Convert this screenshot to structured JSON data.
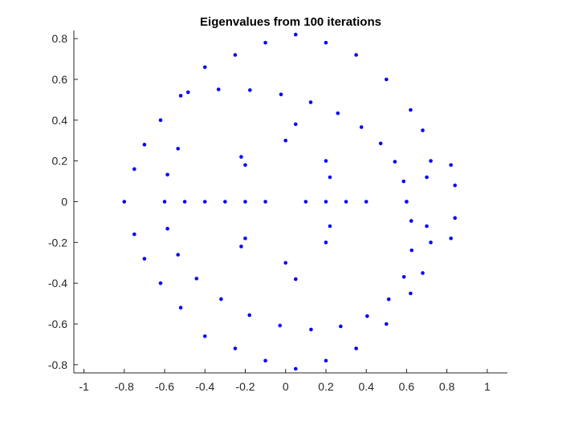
{
  "chart_data": {
    "type": "scatter",
    "title": "Eigenvalues from 100 iterations",
    "xlabel": "",
    "ylabel": "",
    "xlim": [
      -1.05,
      1.1
    ],
    "ylim": [
      -0.84,
      0.84
    ],
    "xticks": [
      -1,
      -0.8,
      -0.6,
      -0.4,
      -0.2,
      0,
      0.2,
      0.4,
      0.6,
      0.8,
      1
    ],
    "xtick_labels": [
      "-1",
      "-0.8",
      "-0.6",
      "-0.4",
      "-0.2",
      "0",
      "0.2",
      "0.4",
      "0.6",
      "0.8",
      "1"
    ],
    "yticks": [
      -0.8,
      -0.6,
      -0.4,
      -0.2,
      0,
      0.2,
      0.4,
      0.6,
      0.8
    ],
    "ytick_labels": [
      "-0.8",
      "-0.6",
      "-0.4",
      "-0.2",
      "0",
      "0.2",
      "0.4",
      "0.6",
      "0.8"
    ],
    "marker_color": "#0000ff",
    "grid": false,
    "series": [
      {
        "points": [
          [
            0.6,
            0.0
          ],
          [
            0.5854,
            0.0998
          ],
          [
            0.5421,
            0.196
          ],
          [
            0.4716,
            0.2856
          ],
          [
            0.3761,
            0.3657
          ],
          [
            0.2591,
            0.4338
          ],
          [
            0.1245,
            0.4878
          ],
          [
            -0.0226,
            0.526
          ],
          [
            -0.1767,
            0.5472
          ],
          [
            -0.3325,
            0.5508
          ],
          [
            -0.4836,
            0.5369
          ],
          [
            -0.5,
            0.0
          ],
          [
            -0.5336,
            0.2602
          ],
          [
            -0.5858,
            0.1327
          ],
          [
            -0.6,
            0.0
          ],
          [
            -0.5858,
            -0.1327
          ],
          [
            -0.5336,
            -0.2602
          ],
          [
            -0.4416,
            -0.3772
          ],
          [
            -0.3198,
            -0.4779
          ],
          [
            -0.1791,
            -0.5565
          ],
          [
            -0.0278,
            -0.6077
          ],
          [
            0.1262,
            -0.6271
          ],
          [
            0.2732,
            -0.6117
          ],
          [
            0.4046,
            -0.5614
          ],
          [
            0.5116,
            -0.4788
          ],
          [
            0.5869,
            -0.3689
          ],
          [
            0.6252,
            -0.2385
          ],
          [
            0.6232,
            -0.0943
          ],
          [
            0.6,
            0.0
          ],
          [
            0.7,
            0.12
          ],
          [
            0.72,
            0.2
          ],
          [
            0.68,
            0.35
          ],
          [
            0.62,
            0.45
          ],
          [
            0.5,
            0.6
          ],
          [
            0.35,
            0.72
          ],
          [
            0.2,
            0.78
          ],
          [
            0.05,
            0.82
          ],
          [
            -0.1,
            0.78
          ],
          [
            -0.25,
            0.72
          ],
          [
            -0.4,
            0.66
          ],
          [
            -0.52,
            0.52
          ],
          [
            -0.62,
            0.4
          ],
          [
            -0.7,
            0.28
          ],
          [
            -0.75,
            0.16
          ],
          [
            -0.8,
            0.0
          ],
          [
            -0.75,
            -0.16
          ],
          [
            -0.7,
            -0.28
          ],
          [
            -0.62,
            -0.4
          ],
          [
            -0.52,
            -0.52
          ],
          [
            -0.4,
            -0.66
          ],
          [
            -0.25,
            -0.72
          ],
          [
            -0.1,
            -0.78
          ],
          [
            0.05,
            -0.82
          ],
          [
            0.2,
            -0.78
          ],
          [
            0.35,
            -0.72
          ],
          [
            0.5,
            -0.6
          ],
          [
            0.62,
            -0.45
          ],
          [
            0.68,
            -0.35
          ],
          [
            0.72,
            -0.2
          ],
          [
            0.7,
            -0.12
          ],
          [
            0.84,
            0.08
          ],
          [
            0.84,
            -0.08
          ],
          [
            0.82,
            0.18
          ],
          [
            0.82,
            -0.18
          ],
          [
            0.1,
            0.0
          ],
          [
            0.2,
            0.0
          ],
          [
            0.3,
            0.0
          ],
          [
            0.4,
            0.0
          ],
          [
            -0.1,
            0.0
          ],
          [
            -0.2,
            0.0
          ],
          [
            -0.3,
            0.0
          ],
          [
            -0.4,
            0.0
          ],
          [
            -0.22,
            0.22
          ],
          [
            -0.2,
            0.18
          ],
          [
            0.0,
            0.3
          ],
          [
            0.2,
            0.2
          ],
          [
            0.22,
            0.12
          ],
          [
            -0.22,
            -0.22
          ],
          [
            -0.2,
            -0.18
          ],
          [
            0.0,
            -0.3
          ],
          [
            0.2,
            -0.2
          ],
          [
            0.22,
            -0.12
          ],
          [
            0.05,
            0.38
          ],
          [
            0.05,
            -0.38
          ]
        ]
      }
    ]
  }
}
